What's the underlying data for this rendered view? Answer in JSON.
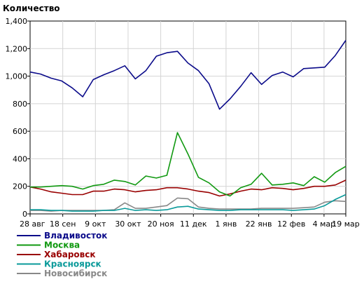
{
  "chart_data": {
    "type": "line",
    "ylabel": "Количество",
    "ylim": [
      0,
      1400
    ],
    "yticks": [
      0,
      200,
      400,
      600,
      800,
      1000,
      1200,
      1400
    ],
    "ytick_labels": [
      "0",
      "200",
      "400",
      "600",
      "800",
      "1,000",
      "1,200",
      "1,400"
    ],
    "xlim": [
      0,
      29
    ],
    "xticks": [
      0,
      3,
      6,
      9,
      12,
      15,
      18,
      21,
      24,
      27,
      29
    ],
    "xtick_labels": [
      "28 авг",
      "18 сен",
      "9 окт",
      "30 окт",
      "20 ноя",
      "11 дек",
      "1 янв",
      "22 янв",
      "12 фев",
      "4 мар",
      "19 мар"
    ],
    "grid": true,
    "legend_position": "bottom-left",
    "series": [
      {
        "name": "Владивосток",
        "color": "#0b0b8a",
        "values": [
          1030,
          1015,
          985,
          965,
          915,
          850,
          975,
          1010,
          1040,
          1075,
          980,
          1040,
          1145,
          1170,
          1180,
          1095,
          1040,
          945,
          760,
          835,
          925,
          1025,
          940,
          1005,
          1030,
          995,
          1055,
          1060,
          1065,
          1150,
          1260
        ]
      },
      {
        "name": "Москва",
        "color": "#119911",
        "values": [
          195,
          195,
          200,
          205,
          200,
          180,
          205,
          215,
          245,
          235,
          210,
          275,
          260,
          280,
          590,
          435,
          265,
          225,
          160,
          130,
          190,
          215,
          295,
          210,
          215,
          225,
          205,
          270,
          230,
          300,
          345
        ]
      },
      {
        "name": "Хабаровск",
        "color": "#990000",
        "values": [
          195,
          180,
          160,
          150,
          140,
          140,
          165,
          165,
          180,
          175,
          160,
          170,
          175,
          190,
          190,
          180,
          165,
          155,
          130,
          145,
          165,
          180,
          175,
          190,
          185,
          175,
          185,
          200,
          200,
          210,
          245
        ]
      },
      {
        "name": "Красноярск",
        "color": "#0a9a9a",
        "values": [
          30,
          30,
          25,
          25,
          20,
          20,
          20,
          25,
          25,
          40,
          25,
          30,
          25,
          30,
          50,
          55,
          35,
          30,
          25,
          25,
          30,
          30,
          30,
          30,
          30,
          25,
          30,
          35,
          60,
          105,
          140
        ]
      },
      {
        "name": "Новосибирск",
        "color": "#888888",
        "values": [
          25,
          25,
          20,
          25,
          25,
          25,
          25,
          25,
          30,
          80,
          40,
          40,
          50,
          60,
          115,
          110,
          50,
          40,
          35,
          35,
          35,
          35,
          40,
          40,
          40,
          40,
          45,
          50,
          85,
          95,
          90
        ]
      }
    ]
  }
}
